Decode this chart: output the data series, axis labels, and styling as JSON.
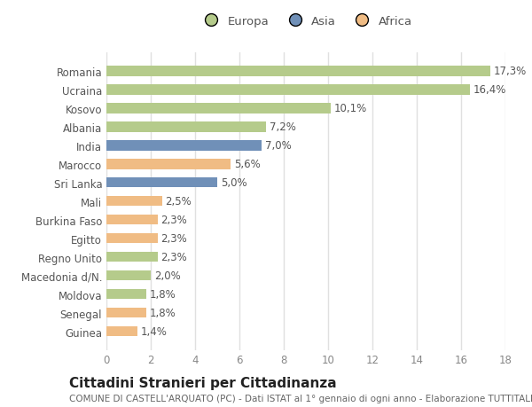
{
  "categories": [
    "Guinea",
    "Senegal",
    "Moldova",
    "Macedonia d/N.",
    "Regno Unito",
    "Egitto",
    "Burkina Faso",
    "Mali",
    "Sri Lanka",
    "Marocco",
    "India",
    "Albania",
    "Kosovo",
    "Ucraina",
    "Romania"
  ],
  "values": [
    1.4,
    1.8,
    1.8,
    2.0,
    2.3,
    2.3,
    2.3,
    2.5,
    5.0,
    5.6,
    7.0,
    7.2,
    10.1,
    16.4,
    17.3
  ],
  "labels": [
    "1,4%",
    "1,8%",
    "1,8%",
    "2,0%",
    "2,3%",
    "2,3%",
    "2,3%",
    "2,5%",
    "5,0%",
    "5,6%",
    "7,0%",
    "7,2%",
    "10,1%",
    "16,4%",
    "17,3%"
  ],
  "colors": [
    "#f0bc84",
    "#f0bc84",
    "#b5cb8b",
    "#b5cb8b",
    "#b5cb8b",
    "#f0bc84",
    "#f0bc84",
    "#f0bc84",
    "#7090b8",
    "#f0bc84",
    "#7090b8",
    "#b5cb8b",
    "#b5cb8b",
    "#b5cb8b",
    "#b5cb8b"
  ],
  "legend": [
    {
      "label": "Europa",
      "color": "#b5cb8b"
    },
    {
      "label": "Asia",
      "color": "#7090b8"
    },
    {
      "label": "Africa",
      "color": "#f0bc84"
    }
  ],
  "xlim": [
    0,
    18
  ],
  "xticks": [
    0,
    2,
    4,
    6,
    8,
    10,
    12,
    14,
    16,
    18
  ],
  "title": "Cittadini Stranieri per Cittadinanza",
  "subtitle": "COMUNE DI CASTELL'ARQUATO (PC) - Dati ISTAT al 1° gennaio di ogni anno - Elaborazione TUTTITALIA.IT",
  "fig_bg_color": "#ffffff",
  "plot_bg_color": "#ffffff",
  "grid_color": "#e0e0e0",
  "bar_height": 0.55,
  "label_fontsize": 8.5,
  "tick_fontsize": 8.5,
  "title_fontsize": 11,
  "subtitle_fontsize": 7.5
}
